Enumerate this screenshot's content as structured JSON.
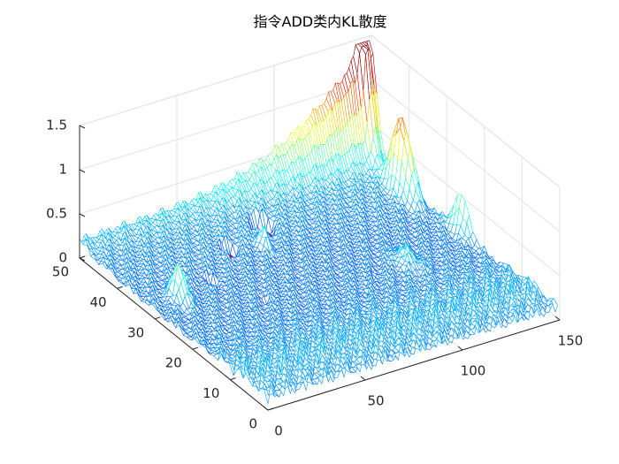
{
  "chart_data": {
    "type": "mesh3d",
    "title": "指令ADD类内KL散度",
    "xlabel": "",
    "ylabel": "",
    "zlabel": "",
    "xlim": [
      0,
      150
    ],
    "ylim": [
      0,
      50
    ],
    "zlim": [
      0,
      1.5
    ],
    "x_ticks": [
      "0",
      "50",
      "100",
      "150"
    ],
    "y_ticks": [
      "0",
      "10",
      "20",
      "30",
      "40",
      "50"
    ],
    "z_ticks": [
      "0",
      "0.5",
      "1",
      "1.5"
    ],
    "grid": true,
    "colormap": "jet",
    "grid_size": {
      "x_points": 130,
      "y_points": 50
    },
    "z_range": [
      0,
      1.45
    ],
    "features": [
      {
        "description": "ridge along far edge",
        "y": 50,
        "z_from": 0.05,
        "z_to": 0.9
      },
      {
        "description": "tall peaks near far corner",
        "x": 125,
        "y": 48,
        "z_peak": 1.45
      },
      {
        "description": "peak",
        "x": 125,
        "y": 38,
        "z_peak": 1.2
      },
      {
        "description": "peak",
        "x": 130,
        "y": 25,
        "z_peak": 0.65
      },
      {
        "description": "peak",
        "x": 12,
        "y": 30,
        "z_peak": 0.5
      },
      {
        "description": "zero-valued red patches",
        "value": 0
      }
    ]
  }
}
